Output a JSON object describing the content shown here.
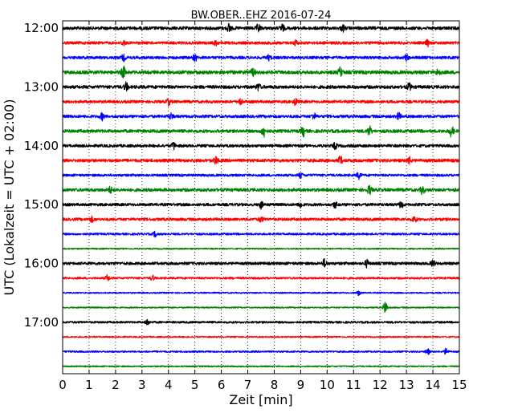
{
  "chart_data": {
    "type": "line",
    "title": "BW.OBER..EHZ 2016-07-24",
    "xlabel": "Zeit  [min]",
    "ylabel": "UTC (Lokalzeit = UTC + 02:00)",
    "xlim": [
      0,
      15
    ],
    "x_ticks": [
      "0",
      "1",
      "2",
      "3",
      "4",
      "5",
      "6",
      "7",
      "8",
      "9",
      "10",
      "11",
      "12",
      "13",
      "14",
      "15"
    ],
    "y_ticks": [
      "12:00",
      "13:00",
      "14:00",
      "15:00",
      "16:00",
      "17:00"
    ],
    "grid": "vertical-dotted",
    "row_colors": [
      "#000000",
      "#ff0000",
      "#0000ff",
      "#008000"
    ],
    "rows": [
      {
        "start": "12:00",
        "amplitude": 0.9,
        "events": [
          [
            6.3,
            1.8
          ],
          [
            7.4,
            1.6
          ],
          [
            8.3,
            1.4
          ],
          [
            10.6,
            1.2
          ]
        ]
      },
      {
        "start": "12:15",
        "amplitude": 0.8,
        "events": [
          [
            2.3,
            1.0
          ],
          [
            5.8,
            1.0
          ],
          [
            8.8,
            1.0
          ],
          [
            13.8,
            1.2
          ]
        ]
      },
      {
        "start": "12:30",
        "amplitude": 0.8,
        "events": [
          [
            2.3,
            1.2
          ],
          [
            5.0,
            1.4
          ],
          [
            7.8,
            1.0
          ],
          [
            13.0,
            1.2
          ]
        ]
      },
      {
        "start": "12:45",
        "amplitude": 1.0,
        "events": [
          [
            2.3,
            2.2
          ],
          [
            7.2,
            1.4
          ],
          [
            10.5,
            1.8
          ],
          [
            14.2,
            1.4
          ]
        ]
      },
      {
        "start": "13:00",
        "amplitude": 0.9,
        "events": [
          [
            2.4,
            1.6
          ],
          [
            7.4,
            1.4
          ],
          [
            13.1,
            1.4
          ]
        ]
      },
      {
        "start": "13:15",
        "amplitude": 0.8,
        "events": [
          [
            4.0,
            1.4
          ],
          [
            6.7,
            1.2
          ],
          [
            8.8,
            1.2
          ]
        ]
      },
      {
        "start": "13:30",
        "amplitude": 0.8,
        "events": [
          [
            1.5,
            1.4
          ],
          [
            4.1,
            1.2
          ],
          [
            9.5,
            1.2
          ],
          [
            12.7,
            1.4
          ]
        ]
      },
      {
        "start": "13:45",
        "amplitude": 0.9,
        "events": [
          [
            7.6,
            2.4
          ],
          [
            9.1,
            2.0
          ],
          [
            11.6,
            2.0
          ],
          [
            14.7,
            2.2
          ]
        ]
      },
      {
        "start": "14:00",
        "amplitude": 0.8,
        "events": [
          [
            4.2,
            1.4
          ],
          [
            10.3,
            1.2
          ]
        ]
      },
      {
        "start": "14:15",
        "amplitude": 0.9,
        "events": [
          [
            5.8,
            1.4
          ],
          [
            10.5,
            1.6
          ],
          [
            13.1,
            1.4
          ]
        ]
      },
      {
        "start": "14:30",
        "amplitude": 0.7,
        "events": [
          [
            9.0,
            1.0
          ],
          [
            11.2,
            1.4
          ]
        ]
      },
      {
        "start": "14:45",
        "amplitude": 0.9,
        "events": [
          [
            1.8,
            1.2
          ],
          [
            11.6,
            1.8
          ],
          [
            13.6,
            1.6
          ]
        ]
      },
      {
        "start": "15:00",
        "amplitude": 0.8,
        "events": [
          [
            7.5,
            1.4
          ],
          [
            9.0,
            1.2
          ],
          [
            10.3,
            1.2
          ],
          [
            12.8,
            1.4
          ]
        ]
      },
      {
        "start": "15:15",
        "amplitude": 0.8,
        "events": [
          [
            1.1,
            1.0
          ],
          [
            7.5,
            1.0
          ],
          [
            13.3,
            1.2
          ]
        ]
      },
      {
        "start": "15:30",
        "amplitude": 0.6,
        "events": [
          [
            3.5,
            1.0
          ]
        ]
      },
      {
        "start": "15:45",
        "amplitude": 0.4,
        "events": []
      },
      {
        "start": "16:00",
        "amplitude": 0.8,
        "events": [
          [
            9.9,
            1.6
          ],
          [
            11.5,
            1.4
          ],
          [
            14.0,
            1.2
          ]
        ]
      },
      {
        "start": "16:15",
        "amplitude": 0.6,
        "events": [
          [
            1.7,
            1.2
          ],
          [
            3.4,
            1.0
          ]
        ]
      },
      {
        "start": "16:30",
        "amplitude": 0.4,
        "events": [
          [
            11.2,
            1.0
          ]
        ]
      },
      {
        "start": "16:45",
        "amplitude": 0.4,
        "events": [
          [
            12.2,
            2.6
          ]
        ]
      },
      {
        "start": "17:00",
        "amplitude": 0.6,
        "events": [
          [
            3.2,
            1.2
          ]
        ]
      },
      {
        "start": "17:15",
        "amplitude": 0.4,
        "events": []
      },
      {
        "start": "17:30",
        "amplitude": 0.5,
        "events": [
          [
            13.8,
            1.2
          ],
          [
            14.5,
            1.2
          ]
        ]
      },
      {
        "start": "17:45",
        "amplitude": 0.4,
        "events": []
      }
    ]
  }
}
